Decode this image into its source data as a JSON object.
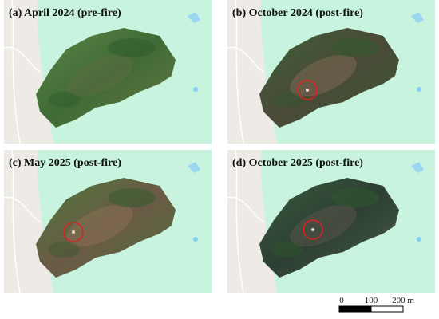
{
  "panels": [
    {
      "title": "(a) April 2024 (pre-fire)"
    },
    {
      "title": "(b) October 2024 (post-fire)"
    },
    {
      "title": "(c) May 2025 (post-fire)"
    },
    {
      "title": "(d) October 2025 (post-fire)"
    }
  ],
  "scale_bar": {
    "labels": [
      "0",
      "100",
      "200 m"
    ]
  }
}
